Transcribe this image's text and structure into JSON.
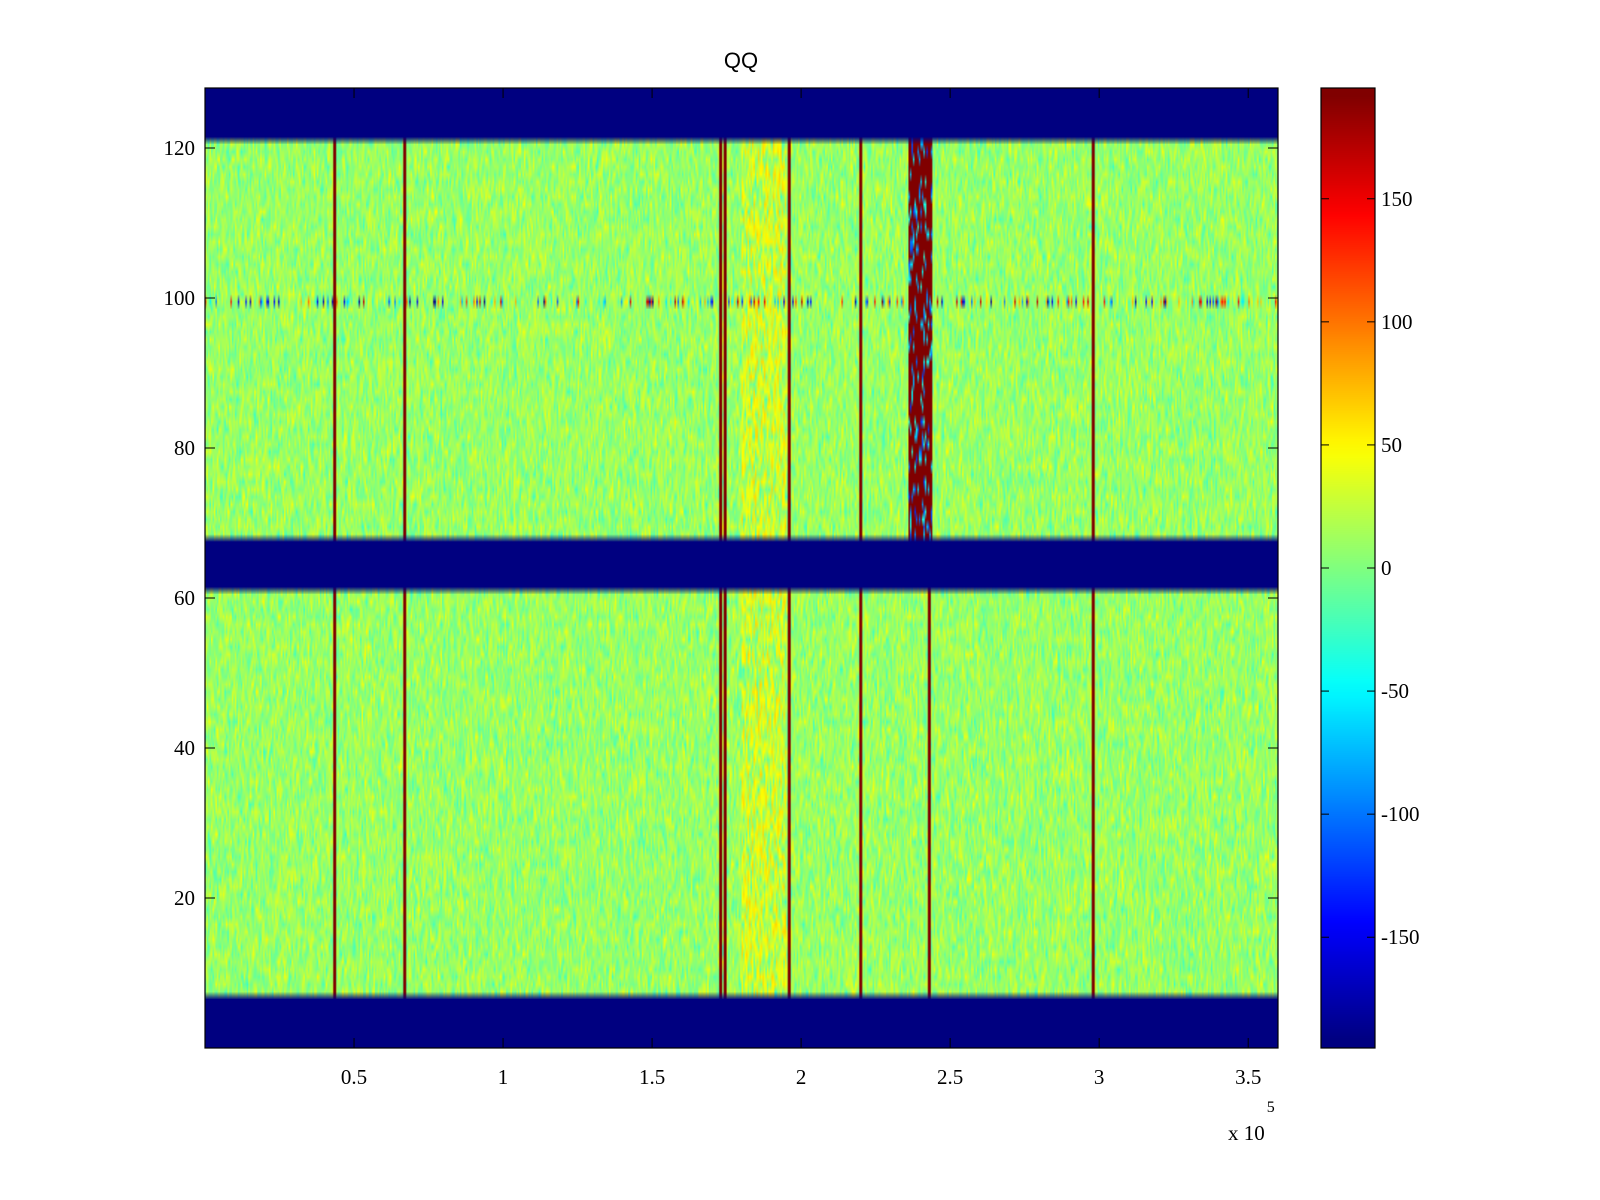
{
  "colors": {
    "background": "#ffffff",
    "axis": "#000000",
    "colormap": "jet"
  },
  "chart_data": {
    "type": "heatmap",
    "title": "QQ",
    "xlabel": "",
    "ylabel": "",
    "x_range": [
      0,
      3.6
    ],
    "x_exponent_label": "x 10",
    "x_exponent_power": "5",
    "x_ticks": [
      0.5,
      1,
      1.5,
      2,
      2.5,
      3,
      3.5
    ],
    "x_tick_labels": [
      "0.5",
      "1",
      "1.5",
      "2",
      "2.5",
      "3",
      "3.5"
    ],
    "y_range": [
      0,
      128
    ],
    "y_ticks": [
      20,
      40,
      60,
      80,
      100,
      120
    ],
    "y_tick_labels": [
      "20",
      "40",
      "60",
      "80",
      "100",
      "120"
    ],
    "grid": false,
    "colorbar": {
      "position": "right",
      "range": [
        -195,
        195
      ],
      "ticks": [
        -150,
        -100,
        -50,
        0,
        50,
        100,
        150
      ],
      "tick_labels": [
        "-150",
        "-100",
        "-50",
        "0",
        "50",
        "100",
        "150"
      ]
    },
    "background_value_range": [
      -35,
      55
    ],
    "masked_row_bands": [
      {
        "y_start": 0,
        "y_end": 7,
        "value": -195
      },
      {
        "y_start": 61,
        "y_end": 68,
        "value": -195
      },
      {
        "y_start": 121,
        "y_end": 128,
        "value": -195
      }
    ],
    "high_columns_x": [
      0.435,
      0.67,
      1.73,
      1.745,
      1.96,
      2.2,
      2.43,
      2.98
    ],
    "high_column_value": 195,
    "warm_region": {
      "x_start": 1.8,
      "x_end": 1.95,
      "value": 50
    },
    "saturated_block": {
      "x_start": 2.36,
      "x_end": 2.44,
      "y_start": 68,
      "y_end": 121,
      "value": 195
    },
    "noisy_row": {
      "y": 99.5,
      "value_range": [
        -195,
        195
      ]
    }
  }
}
